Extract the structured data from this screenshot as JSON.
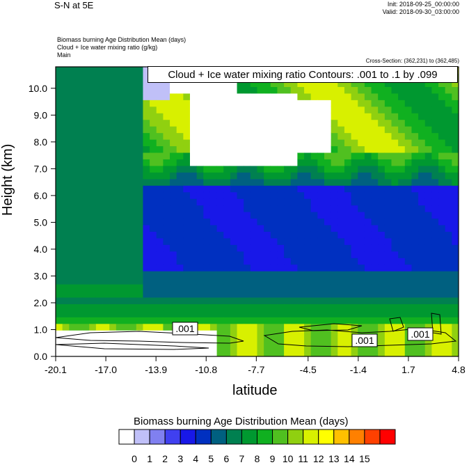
{
  "header": {
    "title": "S-N at 5E",
    "init": "Init: 2018-09-25_00:00:00",
    "valid": "Valid: 2018-09-30_03:00:00"
  },
  "fields": {
    "line1": "Biomass burning Age Distribution Mean   (days)",
    "line2": "Cloud + Ice water mixing ratio   (g/kg)",
    "line3": "Main"
  },
  "cross_section": "Cross-Section: (362,231) to (362,485)",
  "contour_info": "Cloud + Ice water mixing ratio Contours: .001 to .1 by .099",
  "chart_data": {
    "type": "heatmap",
    "xlabel": "latitude",
    "ylabel": "Height (km)",
    "x_ticks": [
      "-20.1",
      "-17.0",
      "-13.9",
      "-10.8",
      "-7.7",
      "-4.5",
      "-1.4",
      "1.7",
      "4.8"
    ],
    "y_ticks": [
      "0.0",
      "1.0",
      "2.0",
      "3.0",
      "4.0",
      "5.0",
      "6.0",
      "7.0",
      "8.0",
      "9.0",
      "10.0"
    ],
    "xlim": [
      -20.1,
      4.8
    ],
    "ylim": [
      0,
      10.8
    ],
    "contour_labels": [
      ".001",
      ".001",
      ".001"
    ],
    "colorbar": {
      "title": "Biomass burning Age Distribution Mean  (days)",
      "labels": [
        "0",
        "1",
        "2",
        "3",
        "4",
        "5",
        "6",
        "7",
        "8",
        "9",
        "10",
        "11",
        "12",
        "13",
        "14",
        "15"
      ],
      "colors": [
        "#ffffff",
        "#c0c0f8",
        "#8080f0",
        "#4040f0",
        "#1818e8",
        "#0030c0",
        "#006080",
        "#008050",
        "#009830",
        "#10b020",
        "#50c020",
        "#90d010",
        "#d8f000",
        "#ffff00",
        "#ffc000",
        "#ff8000",
        "#ff4000",
        "#ff0000"
      ]
    }
  }
}
